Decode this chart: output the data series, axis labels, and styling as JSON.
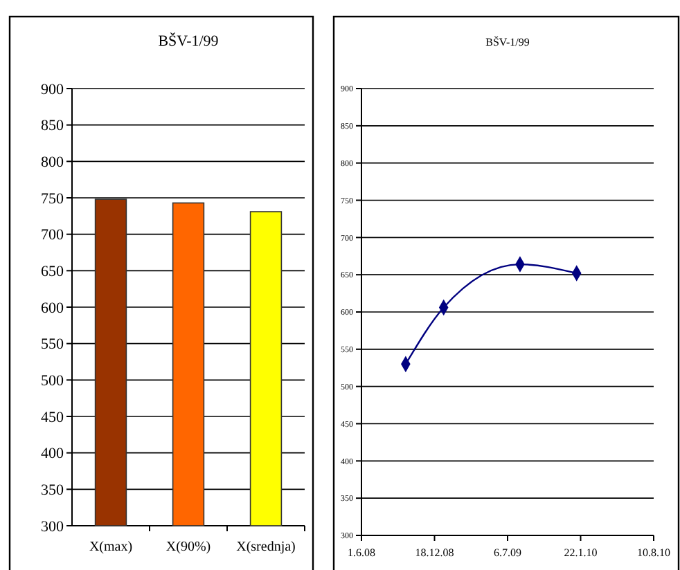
{
  "chart_data": [
    {
      "type": "bar",
      "title": "BŠV-1/99",
      "categories": [
        "X(max)",
        "X(90%)",
        "X(srednja)"
      ],
      "values": [
        748,
        743,
        731
      ],
      "colors": [
        "#993300",
        "#ff6600",
        "#ffff00"
      ],
      "ylim": [
        300,
        900
      ],
      "yticks": [
        300,
        350,
        400,
        450,
        500,
        550,
        600,
        650,
        700,
        750,
        800,
        850,
        900
      ],
      "grid": "y"
    },
    {
      "type": "line",
      "title": "BŠV-1/99",
      "x": [
        "2008-09-30",
        "2009-01-12",
        "2009-08-09",
        "2010-01-11"
      ],
      "series": [
        {
          "color": "#000080",
          "values": [
            530,
            606,
            664,
            652
          ]
        }
      ],
      "xlim": [
        "2008-06-01",
        "2010-08-10"
      ],
      "xticks": [
        {
          "value": "2008-06-01",
          "label": "1.6.08"
        },
        {
          "value": "2008-12-18",
          "label": "18.12.08"
        },
        {
          "value": "2009-07-06",
          "label": "6.7.09"
        },
        {
          "value": "2010-01-22",
          "label": "22.1.10"
        },
        {
          "value": "2010-08-10",
          "label": "10.8.10"
        }
      ],
      "ylim": [
        300,
        900
      ],
      "yticks": [
        300,
        350,
        400,
        450,
        500,
        550,
        600,
        650,
        700,
        750,
        800,
        850,
        900
      ],
      "grid": "y",
      "marker": "diamond",
      "line_style": "solid"
    }
  ]
}
